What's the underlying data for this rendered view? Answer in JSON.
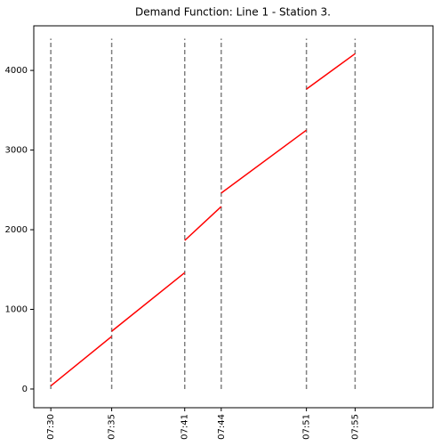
{
  "chart_data": {
    "type": "line",
    "title": "Demand Function: Line 1 - Station 3.",
    "x": [
      450,
      455,
      455,
      455,
      461,
      461,
      461,
      464,
      464,
      464,
      471,
      471,
      471,
      475
    ],
    "series": [
      {
        "name": "demand",
        "color": "#ff0000",
        "values": [
          40,
          660,
          null,
          725,
          1460,
          null,
          1865,
          2290,
          null,
          2460,
          3250,
          null,
          3765,
          4210
        ]
      }
    ],
    "vlines": [
      450,
      455,
      461,
      464,
      471,
      475
    ],
    "vlines_y": [
      0,
      4400
    ],
    "vlines_color": "#808080",
    "xlim": [
      448.6,
      481.4
    ],
    "ylim": [
      -235,
      4560
    ],
    "xticks": [
      {
        "value": 450,
        "label": "07:30"
      },
      {
        "value": 455,
        "label": "07:35"
      },
      {
        "value": 461,
        "label": "07:41"
      },
      {
        "value": 464,
        "label": "07:44"
      },
      {
        "value": 471,
        "label": "07:51"
      },
      {
        "value": 475,
        "label": "07:55"
      }
    ],
    "yticks": [
      0,
      1000,
      2000,
      3000,
      4000
    ]
  }
}
